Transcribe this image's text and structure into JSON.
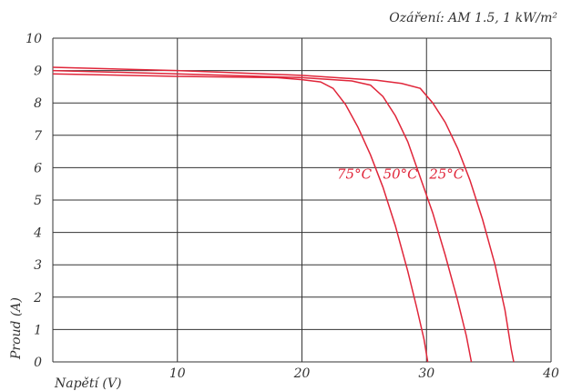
{
  "chart_data": {
    "type": "line",
    "title": "",
    "annotation": "Ozáření: AM 1.5, 1 kW/m²",
    "xlabel": "Napětí (V)",
    "ylabel": "Proud (A)",
    "xlim": [
      0,
      40
    ],
    "ylim": [
      0,
      10
    ],
    "x_ticks": [
      10,
      20,
      30,
      40
    ],
    "y_ticks": [
      0,
      1,
      2,
      3,
      4,
      5,
      6,
      7,
      8,
      9,
      10
    ],
    "grid": true,
    "series": [
      {
        "name": "75°C",
        "points": [
          [
            0,
            8.9
          ],
          [
            10,
            8.82
          ],
          [
            18,
            8.78
          ],
          [
            20,
            8.72
          ],
          [
            21.5,
            8.65
          ],
          [
            22.5,
            8.45
          ],
          [
            23.5,
            7.95
          ],
          [
            24.5,
            7.25
          ],
          [
            25.5,
            6.4
          ],
          [
            26.5,
            5.4
          ],
          [
            27.5,
            4.2
          ],
          [
            28.5,
            2.8
          ],
          [
            29.2,
            1.7
          ],
          [
            29.8,
            0.7
          ],
          [
            30.1,
            0.0
          ]
        ]
      },
      {
        "name": "50°C",
        "points": [
          [
            0,
            9.0
          ],
          [
            10,
            8.9
          ],
          [
            20,
            8.78
          ],
          [
            24,
            8.68
          ],
          [
            25.5,
            8.55
          ],
          [
            26.5,
            8.2
          ],
          [
            27.5,
            7.6
          ],
          [
            28.5,
            6.8
          ],
          [
            29.5,
            5.7
          ],
          [
            30.5,
            4.6
          ],
          [
            31.5,
            3.3
          ],
          [
            32.5,
            1.9
          ],
          [
            33.2,
            0.8
          ],
          [
            33.6,
            0.0
          ]
        ]
      },
      {
        "name": "25°C",
        "points": [
          [
            0,
            9.1
          ],
          [
            10,
            9.0
          ],
          [
            20,
            8.85
          ],
          [
            26,
            8.7
          ],
          [
            28,
            8.6
          ],
          [
            29.5,
            8.45
          ],
          [
            30.5,
            8.0
          ],
          [
            31.5,
            7.4
          ],
          [
            32.5,
            6.6
          ],
          [
            33.5,
            5.6
          ],
          [
            34.5,
            4.4
          ],
          [
            35.5,
            3.0
          ],
          [
            36.3,
            1.6
          ],
          [
            36.8,
            0.4
          ],
          [
            37.0,
            0.0
          ]
        ]
      }
    ]
  }
}
